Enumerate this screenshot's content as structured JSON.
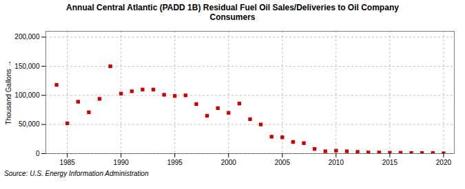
{
  "chart_data": {
    "type": "scatter",
    "title": "Annual Central Atlantic (PADD 1B) Residual Fuel Oil Sales/Deliveries to Oil Company\nConsumers",
    "ylabel": "Thousand Gallons",
    "source": "Source: U.S. Energy Information Administration",
    "color": "#cc0000",
    "marker": "square",
    "grid": true,
    "xlim": [
      1983,
      2021
    ],
    "ylim": [
      0,
      210000
    ],
    "xticks": [
      1985,
      1990,
      1995,
      2000,
      2005,
      2010,
      2015,
      2020
    ],
    "yticks": [
      0,
      {
        "value": 50000,
        "label": "50,000"
      },
      {
        "value": 100000,
        "label": "100,000"
      },
      {
        "value": 150000,
        "label": "150,000"
      },
      {
        "value": 200000,
        "label": "200,000"
      }
    ],
    "x": [
      1984,
      1985,
      1986,
      1987,
      1988,
      1989,
      1990,
      1991,
      1992,
      1993,
      1994,
      1995,
      1996,
      1997,
      1998,
      1999,
      2000,
      2001,
      2002,
      2003,
      2004,
      2005,
      2006,
      2007,
      2008,
      2009,
      2010,
      2011,
      2012,
      2013,
      2014,
      2015,
      2016,
      2017,
      2018,
      2019,
      2020
    ],
    "values": [
      118000,
      52000,
      89000,
      71000,
      94000,
      150000,
      103000,
      107000,
      110000,
      110000,
      101000,
      99000,
      100000,
      85000,
      65000,
      78000,
      70000,
      86000,
      59000,
      50000,
      29000,
      28000,
      20000,
      18000,
      8000,
      4000,
      5000,
      4000,
      3000,
      2000,
      2000,
      1500,
      1500,
      1000,
      1000,
      1000,
      500
    ]
  }
}
